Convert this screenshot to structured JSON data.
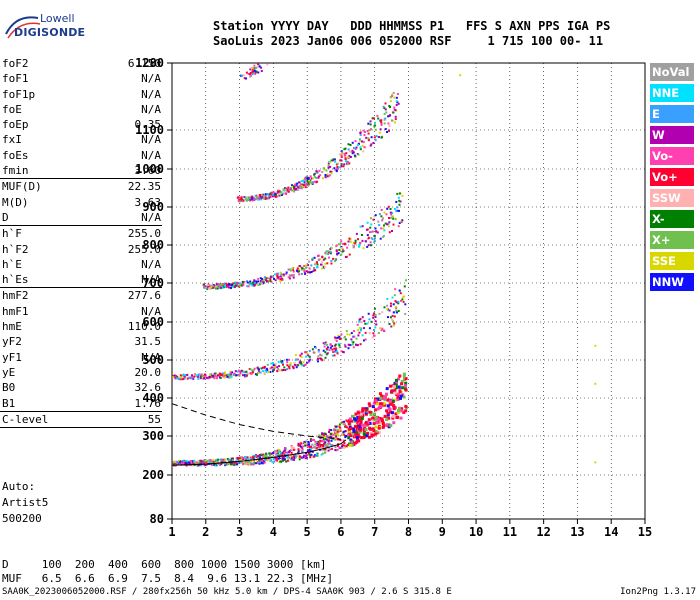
{
  "logo": {
    "line1": "Lowell",
    "line2": "DIGISONDE"
  },
  "header": {
    "line1": "Station YYYY DAY   DDD HHMMSS P1   FFS S AXN PPS IGA PS",
    "line2": "SaoLuis 2023 Jan06 006 052000 RSF     1 715 100 00- 11"
  },
  "params": [
    {
      "label": "foF2",
      "value": "6.150"
    },
    {
      "label": "foF1",
      "value": "N/A"
    },
    {
      "label": "foF1p",
      "value": "N/A"
    },
    {
      "label": "foE",
      "value": "N/A"
    },
    {
      "label": "foEp",
      "value": "0.35"
    },
    {
      "label": "fxI",
      "value": "N/A"
    },
    {
      "label": "foEs",
      "value": "N/A"
    },
    {
      "label": "fmin",
      "value": "3.60"
    },
    {
      "sep": true
    },
    {
      "label": "MUF(D)",
      "value": "22.35"
    },
    {
      "label": "M(D)",
      "value": "3.63"
    },
    {
      "label": "D",
      "value": "N/A"
    },
    {
      "sep": true
    },
    {
      "label": "h`F",
      "value": "255.0"
    },
    {
      "label": "h`F2",
      "value": "255.0"
    },
    {
      "label": "h`E",
      "value": "N/A"
    },
    {
      "label": "h`Es",
      "value": "N/A"
    },
    {
      "sep": true
    },
    {
      "label": "hmF2",
      "value": "277.6"
    },
    {
      "label": "hmF1",
      "value": "N/A"
    },
    {
      "label": "hmE",
      "value": "110.0"
    },
    {
      "label": "yF2",
      "value": "31.5"
    },
    {
      "label": "yF1",
      "value": "N/A"
    },
    {
      "label": "yE",
      "value": "20.0"
    },
    {
      "label": "B0",
      "value": "32.6"
    },
    {
      "label": "B1",
      "value": "1.76"
    },
    {
      "sep": true
    },
    {
      "label": "C-level",
      "value": "55"
    },
    {
      "sep": true
    }
  ],
  "free_text": [
    "Auto:",
    "Artist5",
    "500200"
  ],
  "legend": [
    {
      "label": "NoVal",
      "color": "#a0a0a0"
    },
    {
      "label": "NNE",
      "color": "#00e0ff"
    },
    {
      "label": "E",
      "color": "#3aa0ff"
    },
    {
      "label": "W",
      "color": "#b000b0"
    },
    {
      "label": "Vo-",
      "color": "#ff40b0"
    },
    {
      "label": "Vo+",
      "color": "#ff0030"
    },
    {
      "label": "SSW",
      "color": "#ffb0b0"
    },
    {
      "label": "X-",
      "color": "#008000"
    },
    {
      "label": "X+",
      "color": "#70c050"
    },
    {
      "label": "SSE",
      "color": "#d8d800"
    },
    {
      "label": "NNW",
      "color": "#1010ff"
    }
  ],
  "bottom": {
    "d_line": "D     100  200  400  600  800 1000 1500 3000 [km]",
    "muf_line": "MUF   6.5  6.6  6.9  7.5  8.4  9.6 13.1 22.3 [MHz]"
  },
  "footer": {
    "left": "SAA0K_2023006052000.RSF / 280fx256h 50 kHz 5.0 km / DPS-4 SAA0K 903 / 2.6 S 315.8 E",
    "right": "Ion2Png 1.3.17"
  },
  "chart_data": {
    "type": "scatter",
    "xlabel": "",
    "ylabel": "",
    "xlim": [
      1,
      15
    ],
    "ylim": [
      80,
      1280
    ],
    "x_ticks": [
      1,
      2,
      3,
      4,
      5,
      6,
      7,
      8,
      9,
      10,
      11,
      12,
      13,
      14,
      15
    ],
    "y_ticks": [
      80,
      200,
      300,
      400,
      500,
      600,
      700,
      800,
      900,
      1000,
      1100,
      1280
    ],
    "grid": true,
    "traces": [
      {
        "name": "F-layer 1st hop",
        "f_start": 1.0,
        "f_end": 7.9,
        "h_start": 230,
        "h_end": 390,
        "exp": 3.2
      },
      {
        "name": "2nd hop",
        "f_start": 1.0,
        "f_end": 7.9,
        "h_start": 455,
        "h_end": 640,
        "exp": 2.6
      },
      {
        "name": "3rd hop",
        "f_start": 1.9,
        "f_end": 7.8,
        "h_start": 690,
        "h_end": 880,
        "exp": 2.2
      },
      {
        "name": "4th hop",
        "f_start": 2.9,
        "f_end": 7.7,
        "h_start": 920,
        "h_end": 1150,
        "exp": 2.0
      },
      {
        "name": "5th hop",
        "f_start": 3.0,
        "f_end": 3.8,
        "h_start": 1240,
        "h_end": 1290,
        "exp": 1.5
      }
    ],
    "profile_solid": {
      "f": [
        1.0,
        2.0,
        3.0,
        4.0,
        5.0,
        5.6,
        6.0,
        6.15
      ],
      "h": [
        225,
        228,
        235,
        245,
        258,
        270,
        280,
        290
      ]
    },
    "profile_dashed": {
      "f": [
        1.0,
        2.0,
        3.0,
        4.0,
        5.0,
        5.6,
        6.0
      ],
      "h": [
        385,
        355,
        330,
        312,
        300,
        295,
        292
      ]
    },
    "isolated_points": [
      {
        "f": 13.5,
        "h": 540
      },
      {
        "f": 13.5,
        "h": 440
      },
      {
        "f": 13.5,
        "h": 235
      },
      {
        "f": 9.5,
        "h": 1250
      }
    ]
  }
}
